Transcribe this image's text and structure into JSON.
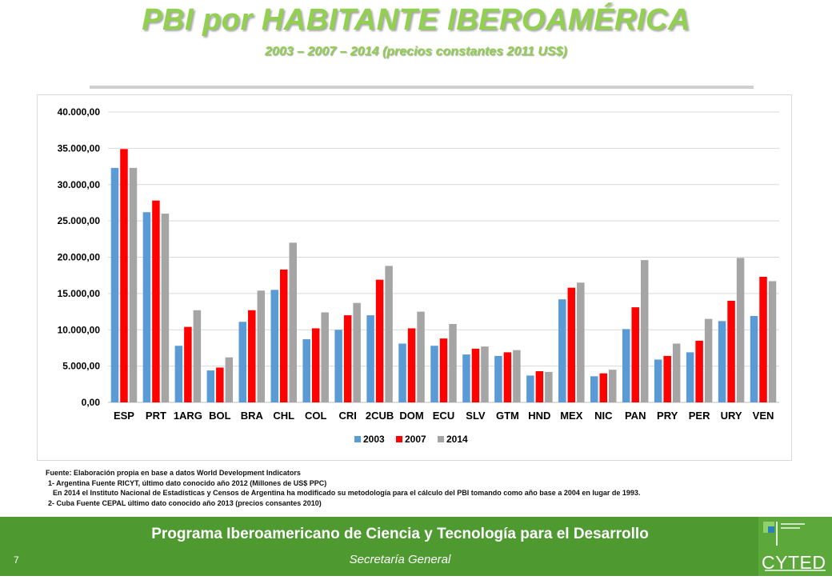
{
  "header": {
    "title": "PBI por HABITANTE IBEROAMÉRICA",
    "subtitle": "2003 – 2007 – 2014 (precios constantes 2011 US$)"
  },
  "colors": {
    "accent_green": "#92D050",
    "footer_green": "#4E9A31",
    "series_2003": "#5B9BD5",
    "series_2007": "#FF0000",
    "series_2014": "#A5A5A5"
  },
  "chart_data": {
    "type": "bar",
    "title": "",
    "xlabel": "",
    "ylabel": "",
    "ylim": [
      0,
      40000
    ],
    "y_ticks": [
      0,
      5000,
      10000,
      15000,
      20000,
      25000,
      30000,
      35000,
      40000
    ],
    "y_tick_labels": [
      "0,00",
      "5.000,00",
      "10.000,00",
      "15.000,00",
      "20.000,00",
      "25.000,00",
      "30.000,00",
      "35.000,00",
      "40.000,00"
    ],
    "grid": true,
    "legend_position": "bottom",
    "categories": [
      "ESP",
      "PRT",
      "1ARG",
      "BOL",
      "BRA",
      "CHL",
      "COL",
      "CRI",
      "2CUB",
      "DOM",
      "ECU",
      "SLV",
      "GTM",
      "HND",
      "MEX",
      "NIC",
      "PAN",
      "PRY",
      "PER",
      "URY",
      "VEN"
    ],
    "series": [
      {
        "name": "2003",
        "color": "#5B9BD5",
        "values": [
          32300,
          26200,
          7800,
          4400,
          11100,
          15500,
          8700,
          10000,
          12000,
          8100,
          7800,
          6600,
          6400,
          3700,
          14200,
          3600,
          10100,
          5900,
          6900,
          11200,
          11900
        ]
      },
      {
        "name": "2007",
        "color": "#FF0000",
        "values": [
          34900,
          27800,
          10400,
          4800,
          12700,
          18300,
          10200,
          12000,
          16900,
          10200,
          8800,
          7400,
          6900,
          4300,
          15800,
          4000,
          13100,
          6400,
          8500,
          14000,
          17300
        ]
      },
      {
        "name": "2014",
        "color": "#A5A5A5",
        "values": [
          32300,
          26000,
          12700,
          6200,
          15400,
          22000,
          12400,
          13700,
          18800,
          12500,
          10800,
          7700,
          7200,
          4200,
          16500,
          4500,
          19600,
          8100,
          11500,
          19900,
          16700
        ]
      }
    ]
  },
  "notes": {
    "source": "Fuente: Elaboración propia en base a datos World Development Indicators",
    "note1": "1- Argentina Fuente RICYT, último dato conocido año 2012 (Millones de US$ PPC)",
    "note1b": "En 2014 el Instituto Nacional de Estadísticas y Censos de Argentina ha modificado su metodología para el cálculo del PBI  tomando como año base a 2004 en lugar de 1993.",
    "note2": "2- Cuba Fuente CEPAL último dato conocido año 2013 (precios consantes 2010)"
  },
  "footer": {
    "title": "Programa Iberoamericano de Ciencia y Tecnología para el Desarrollo",
    "subtitle": "Secretaría General",
    "page_number": "7",
    "logo_text": "CYTED"
  }
}
